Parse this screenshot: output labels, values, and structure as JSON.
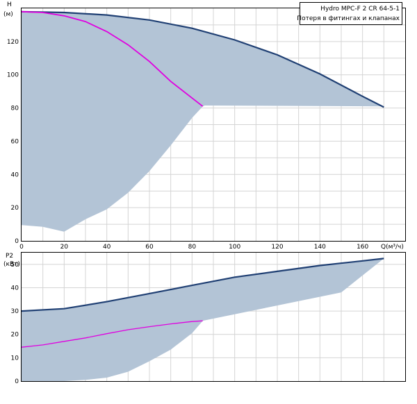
{
  "legend": {
    "title": "Hydro MPC-F 2 CR 64-5-1",
    "subtitle": "Потеря в фитингах и клапанах"
  },
  "colors": {
    "area": "#b3c4d6",
    "main_curve": "#1f3f73",
    "op_curve": "#e000e0",
    "grid": "#d4d4d4",
    "frame": "#000000"
  },
  "chart_data": [
    {
      "type": "area",
      "name": "head",
      "ylabel": "H",
      "yunit": "(м)",
      "xlabel": "Q(м³/ч)",
      "xlim": [
        0,
        180
      ],
      "ylim": [
        0,
        140
      ],
      "xticks": [
        0,
        20,
        40,
        60,
        80,
        100,
        120,
        140,
        160
      ],
      "yticks": [
        0,
        20,
        40,
        60,
        80,
        100,
        120
      ],
      "grid": true,
      "series": [
        {
          "role": "max-curve",
          "x": [
            0,
            20,
            40,
            60,
            80,
            100,
            120,
            140,
            160,
            170
          ],
          "y": [
            138,
            137.5,
            136,
            133,
            128,
            121,
            112,
            100.5,
            87,
            80.5
          ]
        },
        {
          "role": "operating-curve",
          "x": [
            0,
            10,
            20,
            30,
            40,
            50,
            60,
            70,
            80,
            85
          ],
          "y": [
            138,
            137.5,
            135.5,
            132,
            126,
            118,
            108,
            96,
            86,
            81
          ]
        },
        {
          "role": "area-lower-bound",
          "x": [
            0,
            10,
            20,
            30,
            40,
            50,
            60,
            70,
            80,
            85,
            86,
            170
          ],
          "y": [
            9.5,
            8.5,
            5.5,
            13,
            19,
            29,
            42,
            57.5,
            74,
            81,
            81.5,
            81
          ]
        }
      ]
    },
    {
      "type": "area",
      "name": "power",
      "ylabel": "P2",
      "yunit": "(кВт)",
      "xlim": [
        0,
        180
      ],
      "ylim": [
        0,
        55
      ],
      "yticks": [
        0,
        10,
        20,
        30,
        40,
        50
      ],
      "grid": true,
      "series": [
        {
          "role": "max-curve",
          "x": [
            0,
            20,
            40,
            60,
            80,
            100,
            120,
            140,
            160,
            170
          ],
          "y": [
            30,
            31,
            34,
            37.5,
            41,
            44.5,
            47,
            49.5,
            51.5,
            52.5
          ]
        },
        {
          "role": "operating-curve",
          "x": [
            0,
            10,
            20,
            30,
            40,
            50,
            60,
            70,
            80,
            85
          ],
          "y": [
            14.5,
            15.5,
            17,
            18.5,
            20.3,
            22,
            23.3,
            24.5,
            25.5,
            25.8
          ]
        },
        {
          "role": "area-lower-bound",
          "x": [
            0,
            10,
            20,
            30,
            40,
            50,
            60,
            70,
            80,
            85,
            86,
            150,
            170
          ],
          "y": [
            0,
            0,
            0,
            0.5,
            1.5,
            4,
            8.5,
            13.5,
            20.5,
            25.8,
            26,
            38,
            52.5
          ]
        }
      ]
    }
  ]
}
